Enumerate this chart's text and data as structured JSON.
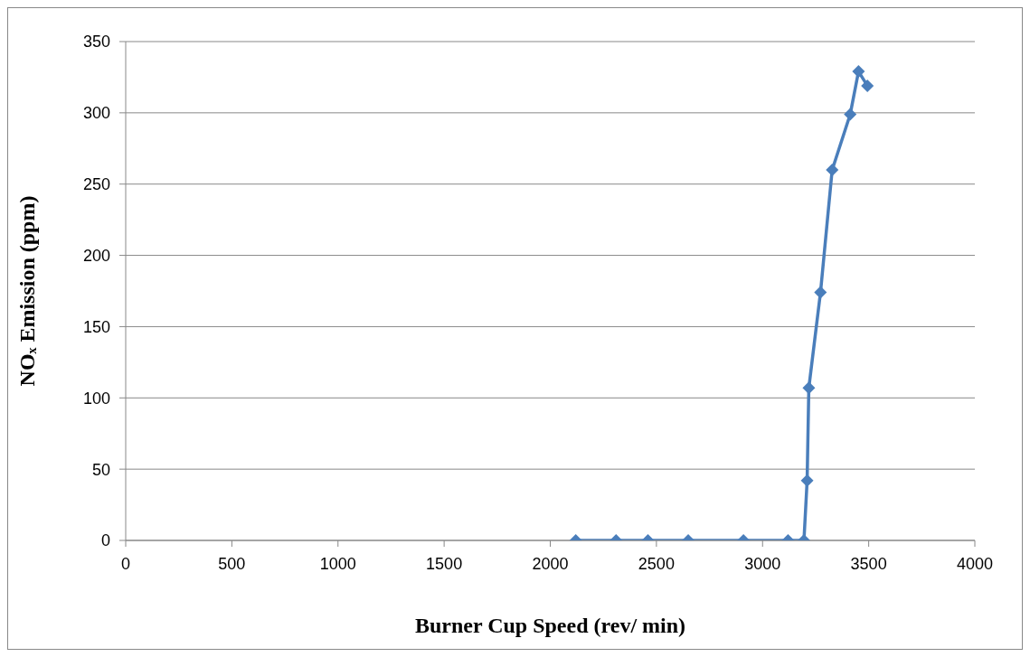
{
  "chart_data": {
    "type": "line",
    "xlabel": "Burner Cup Speed (rev/ min)",
    "ylabel": "NOₓ Emission (ppm)",
    "x": [
      2120,
      2310,
      2460,
      2650,
      2910,
      3120,
      3195,
      3210,
      3218,
      3273,
      3328,
      3413,
      3452,
      3494
    ],
    "series": [
      {
        "color": "#4a7ebb",
        "values": [
          0,
          0,
          0,
          0,
          0,
          0,
          0,
          42,
          107,
          174,
          260,
          299,
          329,
          319
        ]
      }
    ],
    "xlim": [
      0,
      4000
    ],
    "xticks": [
      0,
      500,
      1000,
      1500,
      2000,
      2500,
      3000,
      3500,
      4000
    ],
    "ylim": [
      0,
      350
    ],
    "yticks": [
      0,
      50,
      100,
      150,
      200,
      250,
      300,
      350
    ],
    "grid": "y",
    "marker": "diamond",
    "line_style": "solid"
  }
}
